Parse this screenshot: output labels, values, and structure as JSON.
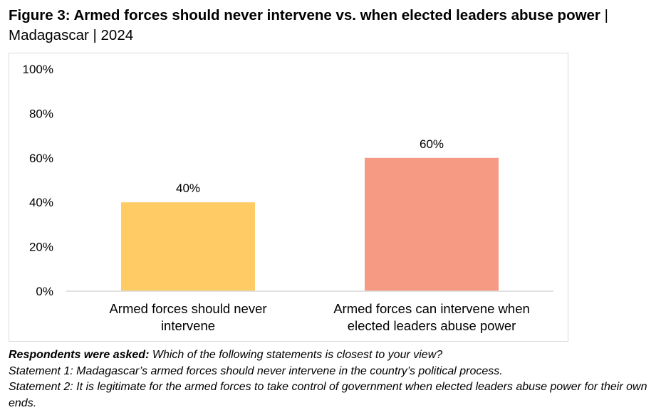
{
  "title": {
    "bold": "Figure 3: Armed forces should never intervene vs. when elected leaders abuse power",
    "rest": " | Madagascar | 2024"
  },
  "notes": {
    "asked_label": "Respondents were asked:",
    "asked_text": " Which of the following statements is closest to your view?",
    "statement1": "Statement 1: Madagascar’s armed forces should never intervene in the country’s political process.",
    "statement2": "Statement 2: It is legitimate for the armed forces to take control of government when elected leaders abuse power for their own ends."
  },
  "colors": {
    "bar1": "#FECB65",
    "bar2": "#F79A83",
    "axis": "#d9d9d9"
  },
  "chart_data": {
    "type": "bar",
    "title": "Figure 3: Armed forces should never intervene vs. when elected leaders abuse power | Madagascar | 2024",
    "categories": [
      [
        "Armed forces should never",
        "intervene"
      ],
      [
        "Armed forces can intervene when",
        "elected leaders abuse power"
      ]
    ],
    "values": [
      40,
      60
    ],
    "value_labels": [
      "40%",
      "60%"
    ],
    "ylim": [
      0,
      100
    ],
    "yticks": [
      0,
      20,
      40,
      60,
      80,
      100
    ],
    "ytick_labels": [
      "0%",
      "20%",
      "40%",
      "60%",
      "80%",
      "100%"
    ],
    "xlabel": "",
    "ylabel": "",
    "grid": false,
    "legend": "none"
  }
}
